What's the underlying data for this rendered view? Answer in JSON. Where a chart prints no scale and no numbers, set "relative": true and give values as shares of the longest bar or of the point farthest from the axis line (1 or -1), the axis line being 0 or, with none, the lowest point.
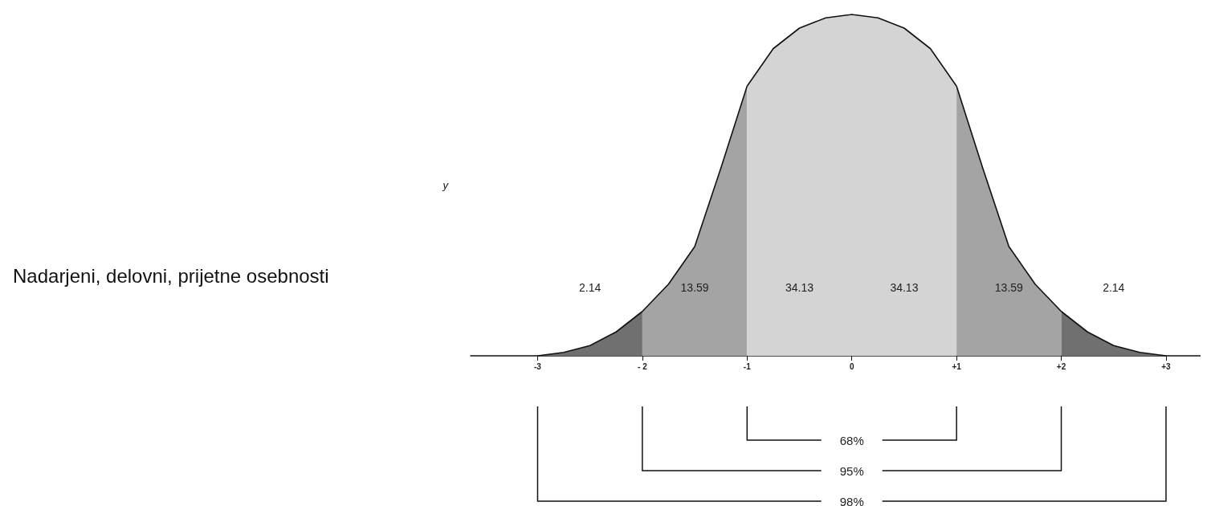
{
  "chart_data": {
    "type": "area",
    "relative": true,
    "ylabel": "y",
    "xlim": [
      -3.64,
      3.33
    ],
    "xticks": [
      -3,
      {
        "value": -2,
        "label": "- 2"
      },
      -1,
      0,
      {
        "value": 1,
        "label": "+1"
      },
      {
        "value": 2,
        "label": "+2"
      },
      {
        "value": 3,
        "label": "+3"
      }
    ],
    "marker": "none",
    "series": [
      {
        "color": "#707070",
        "x": [
          -3,
          -2.75,
          -2.5,
          -2.25,
          -2
        ],
        "values": [
          0,
          0.01,
          0.03,
          0.07,
          0.13
        ]
      },
      {
        "color": "#a4a4a4",
        "x": [
          -2,
          -1.75,
          -1.5,
          -1.25,
          -1
        ],
        "values": [
          0.13,
          0.21,
          0.32,
          0.55,
          0.79
        ]
      },
      {
        "color": "#d4d4d4",
        "x": [
          -1,
          -0.75,
          -0.5,
          -0.25,
          0,
          0.25,
          0.5,
          0.75,
          1
        ],
        "values": [
          0.79,
          0.9,
          0.96,
          0.99,
          1,
          0.99,
          0.96,
          0.9,
          0.79
        ]
      },
      {
        "color": "#a4a4a4",
        "x": [
          1,
          1.25,
          1.5,
          1.75,
          2
        ],
        "values": [
          0.79,
          0.55,
          0.32,
          0.21,
          0.13
        ]
      },
      {
        "color": "#707070",
        "x": [
          2,
          2.25,
          2.5,
          2.75,
          3
        ],
        "values": [
          0.13,
          0.07,
          0.03,
          0.01,
          0
        ]
      }
    ],
    "annotations": [
      "2.14",
      "13.59",
      "34.13",
      "34.13",
      "13.59",
      "2.14",
      "68%",
      "95%",
      "98%",
      "Nadarjeni, delovni, prijetne osebnosti"
    ]
  }
}
